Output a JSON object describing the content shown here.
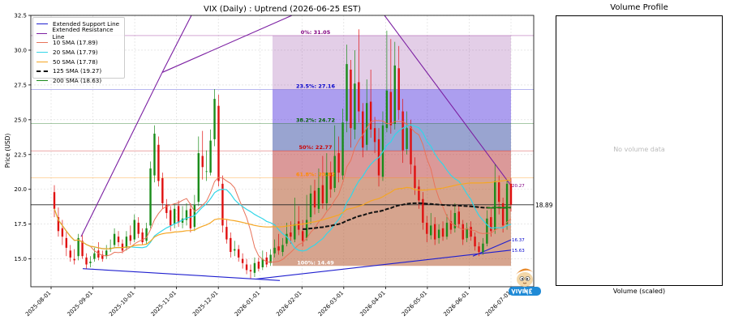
{
  "chart_data": {
    "type": "candlestick",
    "title": "VIX (Daily) : Uptrend (2026-06-25 EST)",
    "ylabel": "Price (USD)",
    "ylim": [
      13.0,
      32.5
    ],
    "yticks": [
      "15.0",
      "17.5",
      "20.0",
      "22.5",
      "25.0",
      "27.5",
      "30.0",
      "32.5"
    ],
    "xticks": [
      "2025-08-01",
      "2025-09-01",
      "2025-10-01",
      "2025-11-01",
      "2025-12-01",
      "2026-01-01",
      "2026-02-01",
      "2026-03-01",
      "2026-04-01",
      "2026-05-01",
      "2026-06-01",
      "2026-07-01"
    ],
    "grid": true,
    "legend_position": "top-left",
    "legend": [
      {
        "label": "Extended Support Line",
        "color": "#1f1fcf"
      },
      {
        "label": "Extended Resistance Line",
        "color": "#7b1fa2"
      },
      {
        "label": "10 SMA (17.89)",
        "color": "#e8735a"
      },
      {
        "label": "20 SMA (17.79)",
        "color": "#33d6e8"
      },
      {
        "label": "50 SMA (17.78)",
        "color": "#f5a623"
      },
      {
        "label": "125 SMA (19.27)",
        "color": "#111111",
        "dashed": true
      },
      {
        "label": "200 SMA (18.63)",
        "color": "#1b8a1b"
      }
    ],
    "current_price_label": "18.89",
    "fib_levels": [
      {
        "label": "0%: 31.05",
        "value": 31.05,
        "color": "#800080"
      },
      {
        "label": "23.5%: 27.16",
        "value": 27.16,
        "color": "#0000cc"
      },
      {
        "label": "38.2%: 24.72",
        "value": 24.72,
        "color": "#006400"
      },
      {
        "label": "50%: 22.77",
        "value": 22.77,
        "color": "#cc0000"
      },
      {
        "label": "61.8%: 20.82",
        "value": 20.82,
        "color": "#ff8c00"
      },
      {
        "label": "100%: 14.49",
        "value": 14.49,
        "color": "#ffffff"
      }
    ],
    "line_end_labels": [
      {
        "label": "20.27",
        "value": 20.27,
        "color": "#800080"
      },
      {
        "label": "16.37",
        "value": 16.37,
        "color": "#0000cc"
      },
      {
        "label": "15.63",
        "value": 15.63,
        "color": "#0000cc"
      }
    ],
    "candles": [
      [
        19.8,
        18.6,
        20.3,
        18.0
      ],
      [
        18.0,
        17.0,
        18.7,
        16.6
      ],
      [
        17.2,
        16.6,
        17.8,
        16.0
      ],
      [
        16.5,
        15.8,
        17.0,
        15.2
      ],
      [
        15.6,
        15.1,
        16.0,
        14.8
      ],
      [
        15.0,
        14.9,
        15.7,
        14.6
      ],
      [
        15.2,
        16.5,
        16.8,
        14.9
      ],
      [
        16.3,
        15.2,
        16.7,
        15.0
      ],
      [
        15.1,
        14.6,
        15.4,
        14.3
      ],
      [
        14.7,
        14.8,
        15.2,
        14.4
      ],
      [
        15.0,
        15.4,
        15.8,
        14.8
      ],
      [
        15.6,
        15.1,
        16.2,
        14.9
      ],
      [
        15.3,
        15.0,
        15.6,
        14.8
      ],
      [
        15.2,
        15.6,
        16.0,
        15.0
      ],
      [
        15.7,
        15.8,
        16.4,
        15.5
      ],
      [
        16.0,
        16.8,
        17.2,
        15.8
      ],
      [
        16.6,
        16.2,
        17.0,
        15.9
      ],
      [
        16.1,
        15.6,
        16.4,
        15.4
      ],
      [
        15.8,
        16.6,
        17.0,
        15.6
      ],
      [
        16.7,
        16.3,
        17.4,
        16.0
      ],
      [
        16.4,
        17.8,
        18.2,
        16.2
      ],
      [
        17.6,
        16.8,
        18.0,
        16.5
      ],
      [
        16.9,
        16.2,
        17.2,
        16.0
      ],
      [
        16.3,
        17.2,
        17.6,
        16.1
      ],
      [
        17.4,
        21.5,
        22.0,
        17.2
      ],
      [
        21.0,
        24.0,
        24.6,
        20.5
      ],
      [
        23.2,
        20.6,
        23.8,
        20.2
      ],
      [
        20.8,
        19.0,
        21.2,
        18.6
      ],
      [
        18.9,
        18.3,
        19.3,
        17.9
      ],
      [
        18.5,
        17.4,
        18.8,
        17.0
      ],
      [
        17.5,
        18.6,
        19.0,
        17.2
      ],
      [
        18.8,
        17.6,
        19.2,
        17.3
      ],
      [
        17.6,
        17.9,
        18.8,
        17.2
      ],
      [
        17.8,
        18.5,
        19.0,
        17.4
      ],
      [
        18.6,
        17.2,
        19.0,
        16.9
      ],
      [
        17.3,
        18.9,
        19.6,
        17.0
      ],
      [
        19.1,
        22.6,
        23.8,
        18.8
      ],
      [
        22.4,
        21.6,
        24.2,
        20.7
      ],
      [
        21.3,
        21.3,
        22.8,
        20.6
      ],
      [
        21.2,
        23.5,
        24.3,
        21.0
      ],
      [
        23.6,
        26.5,
        27.2,
        23.1
      ],
      [
        26.0,
        20.6,
        26.8,
        20.2
      ],
      [
        20.4,
        17.4,
        21.0,
        16.9
      ],
      [
        17.3,
        16.4,
        17.8,
        16.1
      ],
      [
        16.5,
        15.5,
        16.9,
        15.1
      ],
      [
        15.6,
        15.7,
        16.3,
        15.2
      ],
      [
        15.7,
        15.1,
        16.0,
        14.8
      ],
      [
        15.0,
        14.7,
        15.4,
        14.3
      ],
      [
        14.6,
        14.2,
        15.0,
        13.9
      ],
      [
        14.2,
        14.1,
        14.6,
        13.6
      ],
      [
        14.0,
        14.7,
        15.1,
        13.7
      ],
      [
        14.8,
        14.3,
        15.1,
        14.1
      ],
      [
        14.4,
        15.0,
        15.6,
        14.2
      ],
      [
        15.1,
        14.6,
        15.5,
        14.4
      ],
      [
        14.7,
        15.3,
        15.7,
        14.5
      ],
      [
        15.4,
        15.8,
        16.4,
        15.1
      ],
      [
        15.9,
        15.6,
        16.8,
        15.3
      ],
      [
        15.5,
        16.0,
        16.5,
        15.2
      ],
      [
        16.1,
        16.8,
        17.6,
        15.9
      ],
      [
        16.9,
        16.6,
        17.7,
        16.1
      ],
      [
        16.4,
        17.5,
        19.4,
        16.2
      ],
      [
        17.7,
        17.1,
        18.8,
        16.7
      ],
      [
        17.0,
        16.3,
        17.8,
        15.9
      ],
      [
        16.5,
        17.8,
        19.6,
        16.3
      ],
      [
        18.0,
        19.7,
        20.3,
        17.5
      ],
      [
        19.9,
        18.7,
        20.7,
        18.2
      ],
      [
        18.6,
        20.1,
        21.5,
        18.3
      ],
      [
        20.3,
        19.0,
        22.4,
        18.6
      ],
      [
        19.0,
        21.2,
        22.6,
        18.5
      ],
      [
        21.2,
        20.0,
        22.0,
        19.4
      ],
      [
        20.1,
        22.4,
        24.6,
        19.8
      ],
      [
        22.6,
        21.2,
        23.8,
        20.5
      ],
      [
        21.0,
        24.8,
        25.8,
        20.7
      ],
      [
        24.9,
        29.0,
        30.4,
        24.1
      ],
      [
        28.6,
        24.4,
        29.3,
        23.0
      ],
      [
        24.3,
        27.6,
        30.0,
        23.6
      ],
      [
        27.7,
        25.6,
        31.5,
        24.8
      ],
      [
        25.6,
        23.0,
        26.2,
        22.3
      ],
      [
        23.2,
        26.2,
        27.9,
        22.8
      ],
      [
        26.3,
        24.3,
        28.6,
        23.7
      ],
      [
        24.4,
        23.4,
        25.2,
        22.6
      ],
      [
        23.6,
        21.0,
        24.4,
        20.2
      ],
      [
        20.9,
        24.6,
        25.6,
        20.6
      ],
      [
        24.4,
        27.1,
        31.4,
        24.1
      ],
      [
        27.0,
        24.6,
        30.8,
        24.0
      ],
      [
        24.7,
        28.9,
        30.6,
        24.3
      ],
      [
        28.7,
        25.7,
        30.3,
        25.0
      ],
      [
        25.6,
        22.8,
        26.5,
        21.9
      ],
      [
        22.9,
        24.4,
        25.6,
        22.5
      ],
      [
        24.5,
        21.8,
        25.0,
        21.1
      ],
      [
        21.7,
        20.1,
        22.3,
        19.6
      ],
      [
        20.2,
        19.2,
        20.7,
        18.6
      ],
      [
        19.3,
        17.6,
        19.8,
        17.1
      ],
      [
        17.6,
        16.8,
        18.1,
        16.2
      ],
      [
        16.7,
        17.4,
        18.3,
        16.4
      ],
      [
        17.5,
        16.4,
        18.0,
        16.0
      ],
      [
        16.5,
        17.1,
        17.5,
        16.1
      ],
      [
        17.2,
        16.6,
        17.7,
        16.3
      ],
      [
        16.6,
        17.6,
        18.2,
        16.4
      ],
      [
        17.7,
        17.1,
        18.5,
        16.8
      ],
      [
        17.2,
        18.3,
        19.0,
        16.9
      ],
      [
        18.4,
        17.5,
        18.9,
        17.2
      ],
      [
        17.5,
        16.4,
        17.8,
        16.0
      ],
      [
        16.5,
        17.2,
        17.6,
        16.2
      ],
      [
        17.3,
        16.6,
        17.7,
        16.3
      ],
      [
        16.6,
        15.9,
        16.9,
        15.6
      ],
      [
        15.9,
        15.5,
        16.2,
        15.2
      ],
      [
        15.5,
        16.1,
        16.5,
        15.3
      ],
      [
        16.1,
        17.9,
        18.5,
        15.9
      ],
      [
        18.0,
        17.0,
        18.7,
        16.6
      ],
      [
        17.1,
        20.6,
        21.8,
        16.8
      ],
      [
        20.5,
        19.1,
        21.0,
        18.2
      ],
      [
        19.0,
        17.4,
        19.4,
        16.9
      ],
      [
        17.5,
        20.4,
        20.7,
        17.1
      ],
      [
        20.4,
        18.9,
        20.8,
        18.4
      ]
    ]
  },
  "volume_panel": {
    "title": "Volume Profile",
    "xlabel": "Volume (scaled)",
    "empty_text": "No volume data"
  }
}
